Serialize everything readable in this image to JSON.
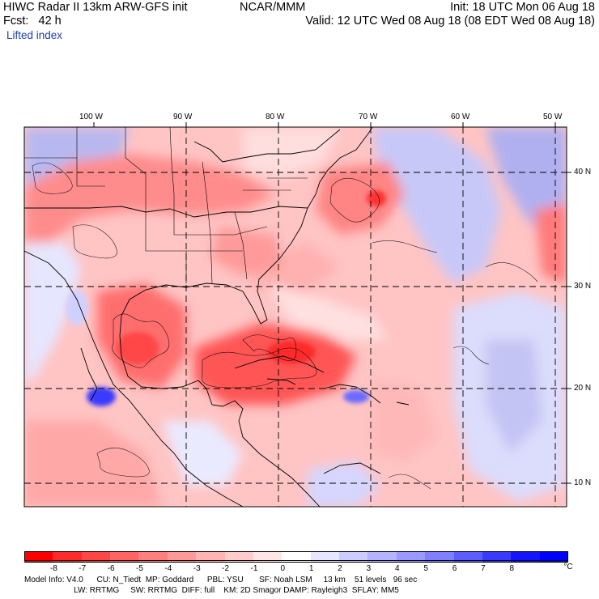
{
  "header": {
    "line1_left": "HIWC Radar II 13km ARW-GFS init",
    "line1_mid": "NCAR/MMM",
    "line1_right": "Init: 18 UTC Mon 06 Aug 18",
    "line2_left": "Fcst:   42 h",
    "line2_right": "Valid: 12 UTC Wed 08 Aug 18 (08 EDT Wed 08 Aug 18)",
    "field_name": "Lifted index"
  },
  "longitude_labels": [
    "100 W",
    "90 W",
    "80 W",
    "70 W",
    "60 W",
    "50 W"
  ],
  "latitude_labels": [
    "40 N",
    "30 N",
    "20 N",
    "10 N"
  ],
  "colorbar": {
    "ticks": [
      "-8",
      "-7",
      "-6",
      "-5",
      "-4",
      "-3",
      "-2",
      "-1",
      "0",
      "1",
      "2",
      "3",
      "4",
      "5",
      "6",
      "7",
      "8"
    ],
    "unit": "°C",
    "colors": [
      "#ff0000",
      "#ff2b2b",
      "#ff4646",
      "#ff6464",
      "#ff7f7f",
      "#ff9999",
      "#ffb3b3",
      "#ffcccc",
      "#ffe6e6",
      "#ffffff",
      "#e6e6ff",
      "#ccccff",
      "#b3b3ff",
      "#9999ff",
      "#7f7fff",
      "#5c5cff",
      "#3a3aff",
      "#1414ff",
      "#0000ff"
    ]
  },
  "model_info": {
    "line1": "Model Info: V4.0      CU: N_Tiedt  MP: Goddard      PBL: YSU       SF: Noah LSM     13 km    51 levels   96 sec",
    "line2": "                      LW: RRTMG     SW: RRTMG  DIFF: full    KM: 2D Smagor DAMP: Rayleigh3  SFLAY: MM5"
  }
}
